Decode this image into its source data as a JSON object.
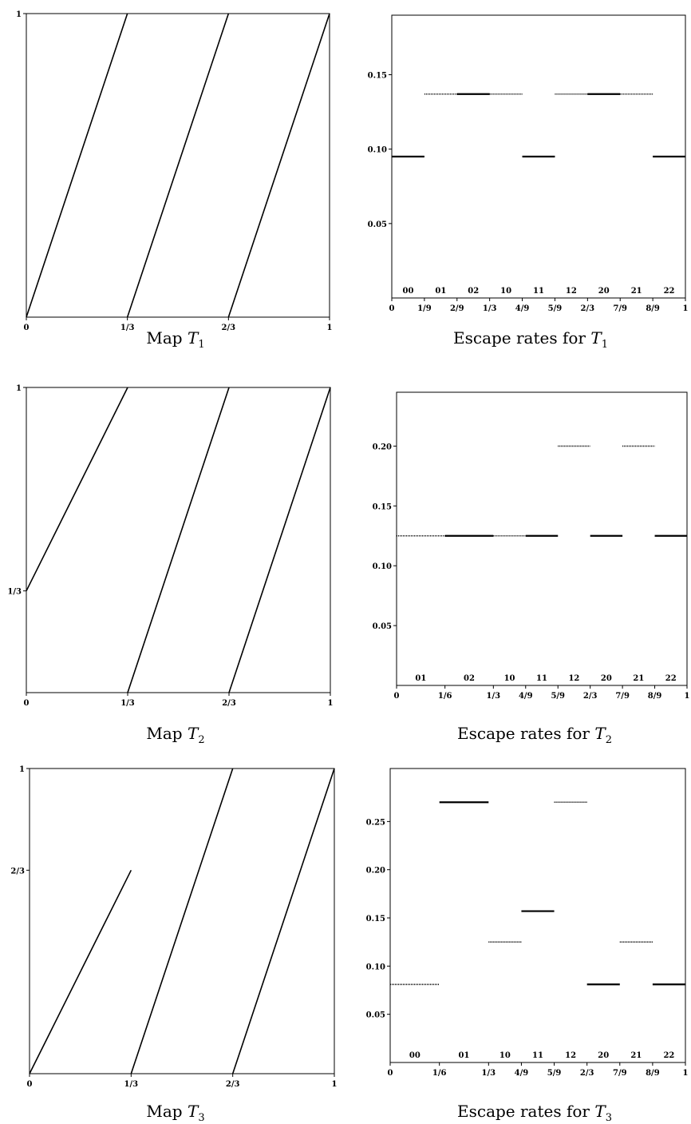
{
  "panels": [
    {
      "chart_data": {
        "type": "line",
        "title": "Map T1",
        "caption": {
          "prefix": "Map ",
          "var": "T",
          "sub": "1"
        },
        "xlim": [
          0,
          1
        ],
        "ylim": [
          0,
          1
        ],
        "x_ticks": [
          {
            "v": 0,
            "label": "0"
          },
          {
            "v": 0.3333,
            "label": "1/3"
          },
          {
            "v": 0.6667,
            "label": "2/3"
          },
          {
            "v": 1,
            "label": "1"
          }
        ],
        "y_ticks": [
          {
            "v": 1,
            "label": "1"
          }
        ],
        "series": [
          {
            "x": [
              0,
              0.3333
            ],
            "y": [
              0,
              1
            ]
          },
          {
            "x": [
              0.3333,
              0.6667
            ],
            "y": [
              0,
              1
            ]
          },
          {
            "x": [
              0.6667,
              1
            ],
            "y": [
              0,
              1
            ]
          }
        ]
      }
    },
    {
      "chart_data": {
        "type": "line",
        "title": "Escape rates for T1",
        "caption": {
          "prefix": "Escape rates for ",
          "var": "T",
          "sub": "1"
        },
        "xlim": [
          0,
          1
        ],
        "ylim": [
          0,
          0.19
        ],
        "x_ticks": [
          {
            "v": 0,
            "label": "0"
          },
          {
            "v": 0.1111,
            "label": "1/9"
          },
          {
            "v": 0.2222,
            "label": "2/9"
          },
          {
            "v": 0.3333,
            "label": "1/3"
          },
          {
            "v": 0.4444,
            "label": "4/9"
          },
          {
            "v": 0.5556,
            "label": "5/9"
          },
          {
            "v": 0.6667,
            "label": "2/3"
          },
          {
            "v": 0.7778,
            "label": "7/9"
          },
          {
            "v": 0.8889,
            "label": "8/9"
          },
          {
            "v": 1,
            "label": "1"
          }
        ],
        "y_ticks": [
          {
            "v": 0.05,
            "label": "0.05"
          },
          {
            "v": 0.1,
            "label": "0.10"
          },
          {
            "v": 0.15,
            "label": "0.15"
          }
        ],
        "cell_labels": [
          {
            "x": 0.0556,
            "label": "00"
          },
          {
            "x": 0.1667,
            "label": "01"
          },
          {
            "x": 0.2778,
            "label": "02"
          },
          {
            "x": 0.3889,
            "label": "10"
          },
          {
            "x": 0.5,
            "label": "11"
          },
          {
            "x": 0.6111,
            "label": "12"
          },
          {
            "x": 0.7222,
            "label": "20"
          },
          {
            "x": 0.8333,
            "label": "21"
          },
          {
            "x": 0.9444,
            "label": "22"
          }
        ],
        "segments": [
          {
            "x1": 0,
            "x2": 0.1111,
            "y": 0.095,
            "style": "solid"
          },
          {
            "x1": 0.1111,
            "x2": 0.2222,
            "y": 0.137,
            "style": "dotted"
          },
          {
            "x1": 0.2222,
            "x2": 0.3333,
            "y": 0.137,
            "style": "solid"
          },
          {
            "x1": 0.3333,
            "x2": 0.4444,
            "y": 0.137,
            "style": "dotted"
          },
          {
            "x1": 0.4444,
            "x2": 0.5556,
            "y": 0.095,
            "style": "solid"
          },
          {
            "x1": 0.5556,
            "x2": 0.6667,
            "y": 0.137,
            "style": "dotted"
          },
          {
            "x1": 0.6667,
            "x2": 0.7778,
            "y": 0.137,
            "style": "solid"
          },
          {
            "x1": 0.7778,
            "x2": 0.8889,
            "y": 0.137,
            "style": "dotted"
          },
          {
            "x1": 0.8889,
            "x2": 1,
            "y": 0.095,
            "style": "solid"
          }
        ]
      }
    },
    {
      "chart_data": {
        "type": "line",
        "title": "Map T2",
        "caption": {
          "prefix": "Map ",
          "var": "T",
          "sub": "2"
        },
        "xlim": [
          0,
          1
        ],
        "ylim": [
          0,
          1
        ],
        "x_ticks": [
          {
            "v": 0,
            "label": "0"
          },
          {
            "v": 0.3333,
            "label": "1/3"
          },
          {
            "v": 0.6667,
            "label": "2/3"
          },
          {
            "v": 1,
            "label": "1"
          }
        ],
        "y_ticks": [
          {
            "v": 0.3333,
            "label": "1/3"
          },
          {
            "v": 1,
            "label": "1"
          }
        ],
        "series": [
          {
            "x": [
              0,
              0.3333
            ],
            "y": [
              0.3333,
              1
            ]
          },
          {
            "x": [
              0.3333,
              0.6667
            ],
            "y": [
              0,
              1
            ]
          },
          {
            "x": [
              0.6667,
              1
            ],
            "y": [
              0,
              1
            ]
          }
        ]
      }
    },
    {
      "chart_data": {
        "type": "line",
        "title": "Escape rates for T2",
        "caption": {
          "prefix": "Escape rates for ",
          "var": "T",
          "sub": "2"
        },
        "xlim": [
          0,
          1
        ],
        "ylim": [
          0,
          0.245
        ],
        "x_ticks": [
          {
            "v": 0,
            "label": "0"
          },
          {
            "v": 0.1667,
            "label": "1/6"
          },
          {
            "v": 0.3333,
            "label": "1/3"
          },
          {
            "v": 0.4444,
            "label": "4/9"
          },
          {
            "v": 0.5556,
            "label": "5/9"
          },
          {
            "v": 0.6667,
            "label": "2/3"
          },
          {
            "v": 0.7778,
            "label": "7/9"
          },
          {
            "v": 0.8889,
            "label": "8/9"
          },
          {
            "v": 1,
            "label": "1"
          }
        ],
        "y_ticks": [
          {
            "v": 0.05,
            "label": "0.05"
          },
          {
            "v": 0.1,
            "label": "0.10"
          },
          {
            "v": 0.15,
            "label": "0.15"
          },
          {
            "v": 0.2,
            "label": "0.20"
          }
        ],
        "cell_labels": [
          {
            "x": 0.0833,
            "label": "01"
          },
          {
            "x": 0.25,
            "label": "02"
          },
          {
            "x": 0.3889,
            "label": "10"
          },
          {
            "x": 0.5,
            "label": "11"
          },
          {
            "x": 0.6111,
            "label": "12"
          },
          {
            "x": 0.7222,
            "label": "20"
          },
          {
            "x": 0.8333,
            "label": "21"
          },
          {
            "x": 0.9444,
            "label": "22"
          }
        ],
        "segments": [
          {
            "x1": 0,
            "x2": 0.1667,
            "y": 0.125,
            "style": "dotted"
          },
          {
            "x1": 0.1667,
            "x2": 0.3333,
            "y": 0.125,
            "style": "solid"
          },
          {
            "x1": 0.3333,
            "x2": 0.4444,
            "y": 0.125,
            "style": "dotted"
          },
          {
            "x1": 0.4444,
            "x2": 0.5556,
            "y": 0.125,
            "style": "solid"
          },
          {
            "x1": 0.5556,
            "x2": 0.6667,
            "y": 0.2,
            "style": "dotted"
          },
          {
            "x1": 0.6667,
            "x2": 0.7778,
            "y": 0.125,
            "style": "solid"
          },
          {
            "x1": 0.7778,
            "x2": 0.8889,
            "y": 0.2,
            "style": "dotted"
          },
          {
            "x1": 0.8889,
            "x2": 1,
            "y": 0.125,
            "style": "solid"
          }
        ]
      }
    },
    {
      "chart_data": {
        "type": "line",
        "title": "Map T3",
        "caption": {
          "prefix": "Map ",
          "var": "T",
          "sub": "3"
        },
        "xlim": [
          0,
          1
        ],
        "ylim": [
          0,
          1
        ],
        "x_ticks": [
          {
            "v": 0,
            "label": "0"
          },
          {
            "v": 0.3333,
            "label": "1/3"
          },
          {
            "v": 0.6667,
            "label": "2/3"
          },
          {
            "v": 1,
            "label": "1"
          }
        ],
        "y_ticks": [
          {
            "v": 0.6667,
            "label": "2/3"
          },
          {
            "v": 1,
            "label": "1"
          }
        ],
        "series": [
          {
            "x": [
              0,
              0.3333
            ],
            "y": [
              0,
              0.6667
            ]
          },
          {
            "x": [
              0.3333,
              0.6667
            ],
            "y": [
              0,
              1
            ]
          },
          {
            "x": [
              0.6667,
              1
            ],
            "y": [
              0,
              1
            ]
          }
        ]
      }
    },
    {
      "chart_data": {
        "type": "line",
        "title": "Escape rates for T3",
        "caption": {
          "prefix": "Escape rates for ",
          "var": "T",
          "sub": "3"
        },
        "xlim": [
          0,
          1
        ],
        "ylim": [
          0,
          0.305
        ],
        "x_ticks": [
          {
            "v": 0,
            "label": "0"
          },
          {
            "v": 0.1667,
            "label": "1/6"
          },
          {
            "v": 0.3333,
            "label": "1/3"
          },
          {
            "v": 0.4444,
            "label": "4/9"
          },
          {
            "v": 0.5556,
            "label": "5/9"
          },
          {
            "v": 0.6667,
            "label": "2/3"
          },
          {
            "v": 0.7778,
            "label": "7/9"
          },
          {
            "v": 0.8889,
            "label": "8/9"
          },
          {
            "v": 1,
            "label": "1"
          }
        ],
        "y_ticks": [
          {
            "v": 0.05,
            "label": "0.05"
          },
          {
            "v": 0.1,
            "label": "0.10"
          },
          {
            "v": 0.15,
            "label": "0.15"
          },
          {
            "v": 0.2,
            "label": "0.20"
          },
          {
            "v": 0.25,
            "label": "0.25"
          }
        ],
        "cell_labels": [
          {
            "x": 0.0833,
            "label": "00"
          },
          {
            "x": 0.25,
            "label": "01"
          },
          {
            "x": 0.3889,
            "label": "10"
          },
          {
            "x": 0.5,
            "label": "11"
          },
          {
            "x": 0.6111,
            "label": "12"
          },
          {
            "x": 0.7222,
            "label": "20"
          },
          {
            "x": 0.8333,
            "label": "21"
          },
          {
            "x": 0.9444,
            "label": "22"
          }
        ],
        "segments": [
          {
            "x1": 0,
            "x2": 0.1667,
            "y": 0.081,
            "style": "dotted"
          },
          {
            "x1": 0.1667,
            "x2": 0.3333,
            "y": 0.27,
            "style": "solid"
          },
          {
            "x1": 0.3333,
            "x2": 0.4444,
            "y": 0.125,
            "style": "dotted"
          },
          {
            "x1": 0.4444,
            "x2": 0.5556,
            "y": 0.157,
            "style": "solid"
          },
          {
            "x1": 0.5556,
            "x2": 0.6667,
            "y": 0.27,
            "style": "dotted"
          },
          {
            "x1": 0.6667,
            "x2": 0.7778,
            "y": 0.081,
            "style": "solid"
          },
          {
            "x1": 0.7778,
            "x2": 0.8889,
            "y": 0.125,
            "style": "dotted"
          },
          {
            "x1": 0.8889,
            "x2": 1,
            "y": 0.081,
            "style": "solid"
          }
        ]
      }
    }
  ]
}
